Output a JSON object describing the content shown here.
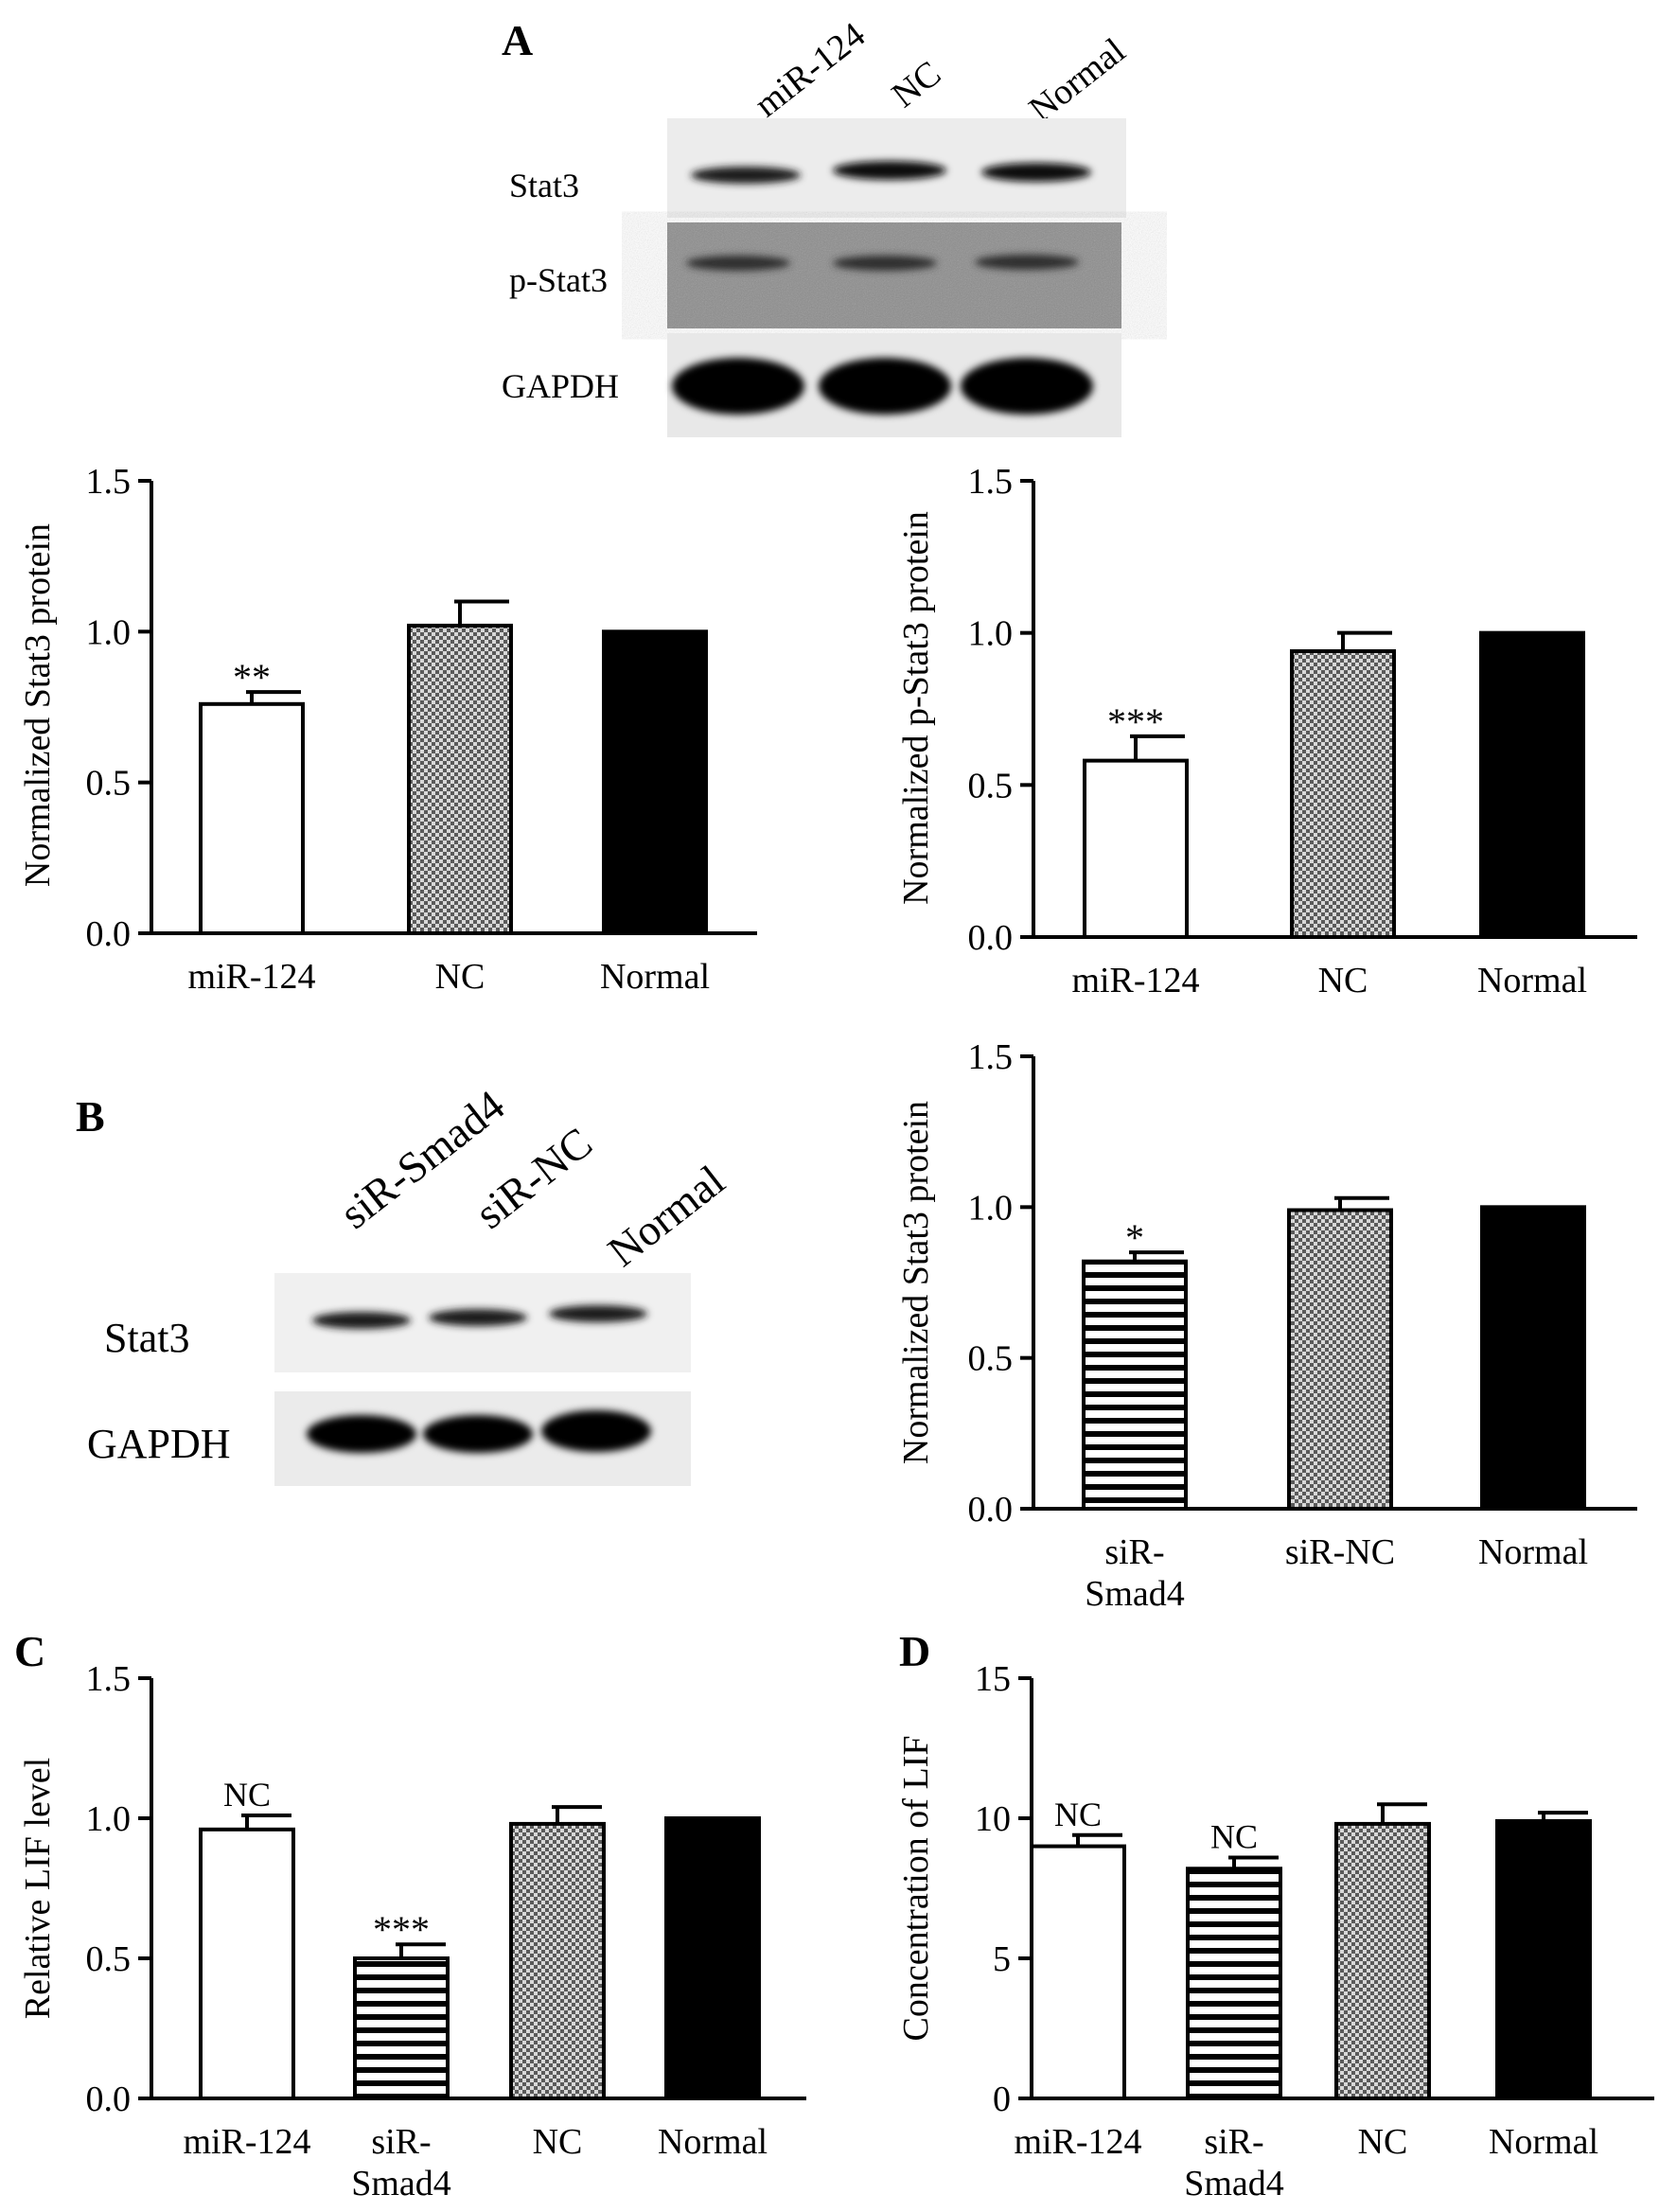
{
  "panels": {
    "A": "A",
    "B": "B",
    "C": "C",
    "D": "D"
  },
  "blot_a": {
    "lanes": [
      "miR-124",
      "NC",
      "Normal"
    ],
    "rows": [
      "Stat3",
      "p-Stat3",
      "GAPDH"
    ]
  },
  "blot_b": {
    "lanes": [
      "siR-Smad4",
      "siR-NC",
      "Normal"
    ],
    "rows": [
      "Stat3",
      "GAPDH"
    ]
  },
  "colors": {
    "open": "#ffffff",
    "striped": "#000000",
    "checkered": "#9a9a9a",
    "solid": "#000000"
  },
  "chart_data": [
    {
      "id": "a-stat3",
      "type": "bar",
      "ylabel": "Normalized Stat3 protein",
      "ylim": [
        0,
        1.5
      ],
      "yticks": [
        "0.0",
        "0.5",
        "1.0",
        "1.5"
      ],
      "categories": [
        "miR-124",
        "NC",
        "Normal"
      ],
      "values": [
        0.76,
        1.02,
        1.0
      ],
      "errors": [
        0.04,
        0.08,
        0.0
      ],
      "annotations": [
        "**",
        "",
        ""
      ],
      "patterns": [
        "open",
        "checkered",
        "solid"
      ]
    },
    {
      "id": "a-pstat3",
      "type": "bar",
      "ylabel": "Normalized p-Stat3 protein",
      "ylim": [
        0,
        1.5
      ],
      "yticks": [
        "0.0",
        "0.5",
        "1.0",
        "1.5"
      ],
      "categories": [
        "miR-124",
        "NC",
        "Normal"
      ],
      "values": [
        0.58,
        0.94,
        1.0
      ],
      "errors": [
        0.08,
        0.06,
        0.0
      ],
      "annotations": [
        "***",
        "",
        ""
      ],
      "patterns": [
        "open",
        "checkered",
        "solid"
      ]
    },
    {
      "id": "b-stat3",
      "type": "bar",
      "ylabel": "Normalized Stat3 protein",
      "ylim": [
        0,
        1.5
      ],
      "yticks": [
        "0.0",
        "0.5",
        "1.0",
        "1.5"
      ],
      "categories": [
        "siR-Smad4",
        "siR-NC",
        "Normal"
      ],
      "category_lines": [
        [
          "siR-",
          "Smad4"
        ],
        [
          "siR-NC"
        ],
        [
          "Normal"
        ]
      ],
      "values": [
        0.82,
        0.99,
        1.0
      ],
      "errors": [
        0.03,
        0.04,
        0.0
      ],
      "annotations": [
        "*",
        "",
        ""
      ],
      "patterns": [
        "striped",
        "checkered",
        "solid"
      ]
    },
    {
      "id": "c-lif",
      "type": "bar",
      "ylabel": "Relative LIF level",
      "ylim": [
        0,
        1.5
      ],
      "yticks": [
        "0.0",
        "0.5",
        "1.0",
        "1.5"
      ],
      "categories": [
        "miR-124",
        "siR-Smad4",
        "NC",
        "Normal"
      ],
      "category_lines": [
        [
          "miR-124"
        ],
        [
          "siR-",
          "Smad4"
        ],
        [
          "NC"
        ],
        [
          "Normal"
        ]
      ],
      "values": [
        0.96,
        0.5,
        0.98,
        1.0
      ],
      "errors": [
        0.05,
        0.05,
        0.06,
        0.0
      ],
      "annotations": [
        "NC",
        "***",
        "",
        ""
      ],
      "patterns": [
        "open",
        "striped",
        "checkered",
        "solid"
      ]
    },
    {
      "id": "d-lif",
      "type": "bar",
      "ylabel": "Concentration of LIF",
      "ylim": [
        0,
        15
      ],
      "yticks": [
        "0",
        "5",
        "10",
        "15"
      ],
      "categories": [
        "miR-124",
        "siR-Smad4",
        "NC",
        "Normal"
      ],
      "category_lines": [
        [
          "miR-124"
        ],
        [
          "siR-",
          "Smad4"
        ],
        [
          "NC"
        ],
        [
          "Normal"
        ]
      ],
      "values": [
        9.0,
        8.2,
        9.8,
        9.9
      ],
      "errors": [
        0.4,
        0.4,
        0.7,
        0.3
      ],
      "annotations": [
        "NC",
        "NC",
        "",
        ""
      ],
      "patterns": [
        "open",
        "striped",
        "checkered",
        "solid"
      ]
    }
  ]
}
